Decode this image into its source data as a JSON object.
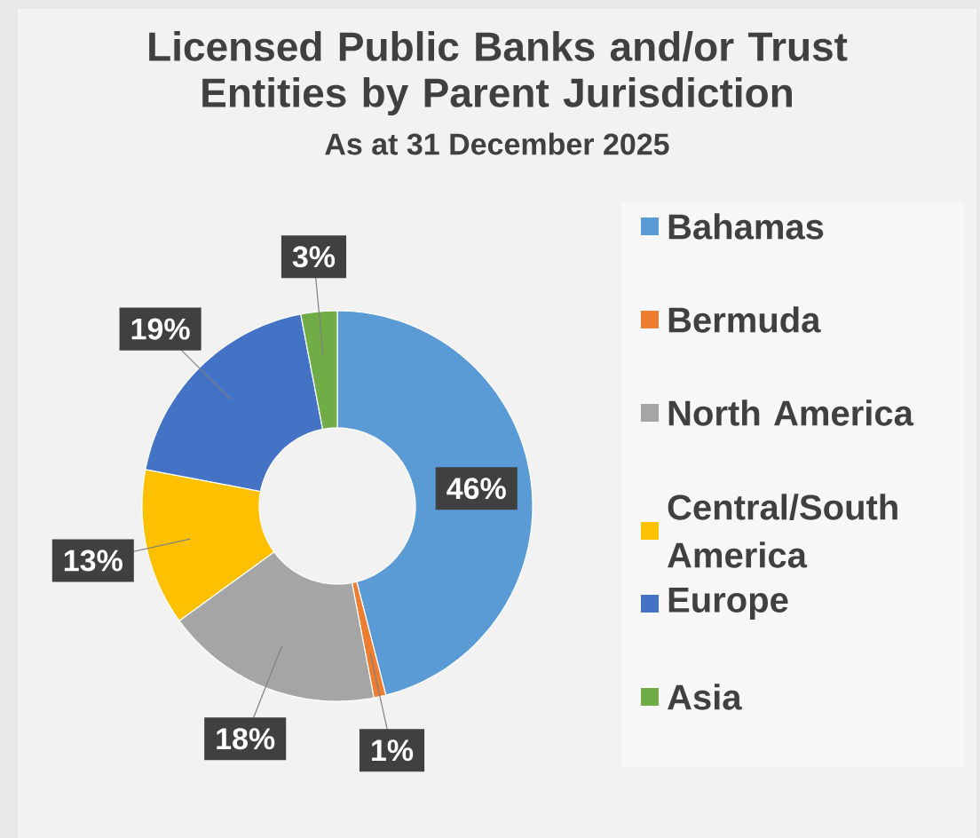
{
  "chart_data": {
    "type": "donut",
    "title": "Licensed Public Banks and/or Trust Entities by Parent  Jurisdiction",
    "subtitle": "As at 31 December 2025",
    "categories": [
      "Bahamas",
      "Bermuda",
      "North America",
      "Central/South America",
      "Europe",
      "Asia"
    ],
    "values": [
      46,
      1,
      18,
      13,
      19,
      3
    ],
    "colors": [
      "#5b9bd5",
      "#ed7d31",
      "#a5a5a5",
      "#ffc000",
      "#4472c4",
      "#70ad47"
    ],
    "value_labels": [
      "46%",
      "1%",
      "18%",
      "13%",
      "19%",
      "3%"
    ],
    "legend": "right"
  }
}
